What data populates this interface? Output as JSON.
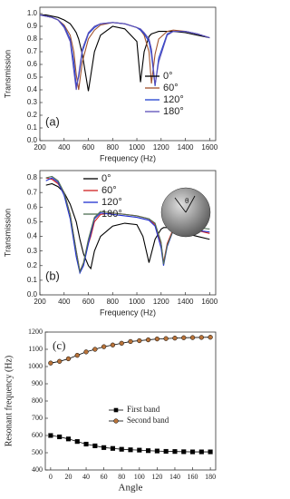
{
  "chart_data": [
    {
      "type": "line",
      "panel_label": "(a)",
      "x_label": "Frequency (Hz)",
      "y_label": "Transmission",
      "xlim": [
        200,
        1650
      ],
      "ylim": [
        0.0,
        1.05
      ],
      "xticks": [
        200,
        400,
        600,
        800,
        1000,
        1200,
        1400,
        1600
      ],
      "yticks": [
        {
          "value": 0.0,
          "label": "0.0"
        },
        {
          "value": 0.1,
          "label": "0.1"
        },
        {
          "value": 0.2,
          "label": "0.2"
        },
        {
          "value": 0.3,
          "label": "0.3"
        },
        {
          "value": 0.4,
          "label": "0.4"
        },
        {
          "value": 0.5,
          "label": "0.5"
        },
        {
          "value": 0.6,
          "label": "0.6"
        },
        {
          "value": 0.7,
          "label": "0.7"
        },
        {
          "value": 0.8,
          "label": "0.8"
        },
        {
          "value": 0.9,
          "label": "0.9"
        },
        {
          "value": 1.0,
          "label": "1.0"
        }
      ],
      "legend": "center right",
      "x": [
        200,
        250,
        300,
        350,
        400,
        450,
        480,
        500,
        520,
        550,
        600,
        650,
        700,
        800,
        900,
        1000,
        1030,
        1060,
        1100,
        1120,
        1150,
        1180,
        1250,
        1300,
        1400,
        1500,
        1600
      ],
      "series": [
        {
          "name": "0°",
          "color": "#000000",
          "values": [
            0.99,
            0.99,
            0.98,
            0.97,
            0.95,
            0.92,
            0.88,
            0.85,
            0.8,
            0.68,
            0.39,
            0.7,
            0.83,
            0.9,
            0.88,
            0.78,
            0.46,
            0.7,
            0.82,
            0.84,
            0.85,
            0.86,
            0.86,
            0.86,
            0.85,
            0.83,
            0.81
          ]
        },
        {
          "name": "60°",
          "color": "#a0522d",
          "values": [
            0.99,
            0.98,
            0.97,
            0.95,
            0.91,
            0.83,
            0.7,
            0.52,
            0.4,
            0.62,
            0.8,
            0.87,
            0.91,
            0.93,
            0.92,
            0.89,
            0.87,
            0.83,
            0.7,
            0.45,
            0.68,
            0.8,
            0.86,
            0.87,
            0.86,
            0.84,
            0.81
          ]
        },
        {
          "name": "120°",
          "color": "#1f3fd0",
          "values": [
            0.99,
            0.98,
            0.97,
            0.95,
            0.9,
            0.8,
            0.62,
            0.43,
            0.5,
            0.7,
            0.84,
            0.89,
            0.92,
            0.93,
            0.92,
            0.89,
            0.87,
            0.84,
            0.78,
            0.68,
            0.43,
            0.65,
            0.84,
            0.86,
            0.86,
            0.84,
            0.81
          ]
        },
        {
          "name": "180°",
          "color": "#5a4fb8",
          "values": [
            0.99,
            0.98,
            0.97,
            0.95,
            0.89,
            0.78,
            0.55,
            0.4,
            0.52,
            0.72,
            0.85,
            0.9,
            0.92,
            0.93,
            0.92,
            0.89,
            0.88,
            0.85,
            0.8,
            0.72,
            0.44,
            0.62,
            0.83,
            0.86,
            0.86,
            0.84,
            0.81
          ]
        }
      ]
    },
    {
      "type": "line",
      "panel_label": "(b)",
      "x_label": "Frequency  (Hz)",
      "y_label": "Transmission",
      "inset_label": "θ",
      "xlim": [
        200,
        1650
      ],
      "ylim": [
        0.0,
        0.85
      ],
      "xticks": [
        200,
        400,
        600,
        800,
        1000,
        1200,
        1400,
        1600
      ],
      "yticks": [
        {
          "value": 0.0,
          "label": "0.0"
        },
        {
          "value": 0.1,
          "label": "0.1"
        },
        {
          "value": 0.2,
          "label": "0.2"
        },
        {
          "value": 0.3,
          "label": "0.3"
        },
        {
          "value": 0.4,
          "label": "0.4"
        },
        {
          "value": 0.5,
          "label": "0.5"
        },
        {
          "value": 0.6,
          "label": "0.6"
        },
        {
          "value": 0.7,
          "label": "0.7"
        },
        {
          "value": 0.8,
          "label": "0.8"
        }
      ],
      "legend": "upper center",
      "x": [
        250,
        300,
        350,
        400,
        450,
        500,
        530,
        560,
        600,
        620,
        650,
        700,
        800,
        900,
        1000,
        1050,
        1100,
        1150,
        1200,
        1220,
        1250,
        1300,
        1400,
        1500,
        1600
      ],
      "series": [
        {
          "name": "0°",
          "color": "#000000",
          "values": [
            0.75,
            0.76,
            0.74,
            0.7,
            0.62,
            0.5,
            0.38,
            0.28,
            0.2,
            0.18,
            0.3,
            0.4,
            0.47,
            0.49,
            0.48,
            0.4,
            0.22,
            0.38,
            0.45,
            0.46,
            0.46,
            0.45,
            0.42,
            0.4,
            0.38
          ]
        },
        {
          "name": "60°",
          "color": "#d02020",
          "values": [
            0.8,
            0.79,
            0.76,
            0.7,
            0.55,
            0.3,
            0.16,
            0.22,
            0.35,
            0.4,
            0.5,
            0.55,
            0.56,
            0.55,
            0.54,
            0.53,
            0.52,
            0.48,
            0.35,
            0.22,
            0.35,
            0.45,
            0.46,
            0.44,
            0.42
          ]
        },
        {
          "name": "120°",
          "color": "#2030d0",
          "values": [
            0.78,
            0.8,
            0.77,
            0.68,
            0.52,
            0.26,
            0.15,
            0.2,
            0.35,
            0.42,
            0.52,
            0.56,
            0.55,
            0.54,
            0.53,
            0.52,
            0.51,
            0.47,
            0.32,
            0.2,
            0.33,
            0.44,
            0.45,
            0.44,
            0.43
          ]
        },
        {
          "name": "180°",
          "color": "#4f6f55",
          "values": [
            0.8,
            0.81,
            0.78,
            0.7,
            0.55,
            0.3,
            0.16,
            0.22,
            0.38,
            0.44,
            0.53,
            0.57,
            0.56,
            0.55,
            0.54,
            0.53,
            0.52,
            0.49,
            0.36,
            0.21,
            0.34,
            0.44,
            0.47,
            0.46,
            0.45
          ]
        }
      ]
    },
    {
      "type": "line",
      "panel_label": "(c)",
      "x_label": "Angle",
      "y_label": "Resonant frequency  (Hz)",
      "xlim": [
        -6,
        186
      ],
      "ylim": [
        400,
        1200
      ],
      "xticks": [
        0,
        20,
        40,
        60,
        80,
        100,
        120,
        140,
        160,
        180
      ],
      "yticks": [
        400,
        500,
        600,
        700,
        800,
        900,
        1000,
        1100,
        1200
      ],
      "legend": "center right",
      "markers": true,
      "x": [
        0,
        10,
        20,
        30,
        40,
        50,
        60,
        70,
        80,
        90,
        100,
        110,
        120,
        130,
        140,
        150,
        160,
        170,
        180
      ],
      "series": [
        {
          "name": "First band",
          "color": "#000000",
          "marker": "square",
          "marker_fill": "#000000",
          "values": [
            600,
            592,
            580,
            565,
            550,
            540,
            530,
            525,
            520,
            517,
            515,
            512,
            510,
            508,
            507,
            506,
            505,
            505,
            505
          ]
        },
        {
          "name": "Second band",
          "color": "#000000",
          "marker": "circle",
          "marker_fill": "#b8733a",
          "values": [
            1020,
            1030,
            1045,
            1065,
            1085,
            1100,
            1115,
            1125,
            1135,
            1145,
            1150,
            1155,
            1160,
            1162,
            1165,
            1167,
            1168,
            1169,
            1170
          ]
        }
      ]
    }
  ]
}
